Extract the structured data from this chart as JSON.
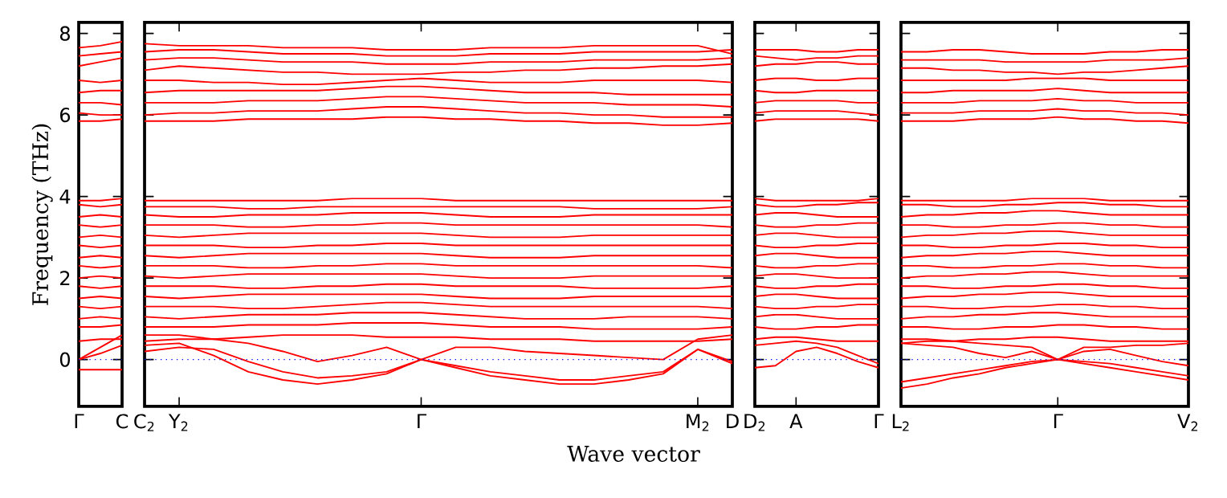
{
  "chart_data": [
    {
      "type": "line",
      "ylabel": "Frequency (THz)",
      "color": "#ff0000",
      "ylim": [
        -1.15,
        8.27
      ],
      "yticks": [
        0,
        2,
        4,
        6,
        8
      ],
      "categories": [
        "Γ",
        null,
        "C"
      ],
      "ref_lines": [
        {
          "axis": "y",
          "value": 0,
          "color": "#0000ff",
          "line_style": "dotted"
        }
      ],
      "series": [
        {
          "values": [
            5.85,
            5.85,
            5.9
          ]
        },
        {
          "values": [
            6.05,
            6.0,
            6.0
          ]
        },
        {
          "values": [
            6.3,
            6.3,
            6.25
          ]
        },
        {
          "values": [
            6.55,
            6.6,
            6.6
          ]
        },
        {
          "values": [
            6.85,
            6.8,
            6.85
          ]
        },
        {
          "values": [
            7.2,
            7.3,
            7.4
          ]
        },
        {
          "values": [
            7.45,
            7.5,
            7.55
          ]
        },
        {
          "values": [
            7.65,
            7.7,
            7.8
          ]
        },
        {
          "values": [
            0.45,
            0.5,
            0.5
          ]
        },
        {
          "values": [
            0.8,
            0.8,
            0.85
          ]
        },
        {
          "values": [
            1.0,
            1.05,
            1.0
          ]
        },
        {
          "values": [
            1.3,
            1.25,
            1.3
          ]
        },
        {
          "values": [
            1.5,
            1.55,
            1.5
          ]
        },
        {
          "values": [
            1.8,
            1.75,
            1.8
          ]
        },
        {
          "values": [
            2.0,
            2.05,
            2.0
          ]
        },
        {
          "values": [
            2.3,
            2.25,
            2.3
          ]
        },
        {
          "values": [
            2.5,
            2.55,
            2.5
          ]
        },
        {
          "values": [
            2.8,
            2.75,
            2.8
          ]
        },
        {
          "values": [
            3.0,
            3.05,
            3.0
          ]
        },
        {
          "values": [
            3.3,
            3.25,
            3.3
          ]
        },
        {
          "values": [
            3.5,
            3.55,
            3.5
          ]
        },
        {
          "values": [
            3.8,
            3.75,
            3.8
          ]
        },
        {
          "values": [
            3.9,
            3.9,
            3.95
          ]
        },
        {
          "values": [
            0,
            0.3,
            0.6
          ]
        },
        {
          "values": [
            0,
            0.15,
            0.35
          ]
        },
        {
          "values": [
            -0.25,
            -0.25,
            -0.25
          ]
        }
      ]
    },
    {
      "type": "line",
      "xlabel": "Wave vector",
      "color": "#ff0000",
      "tick_labels": "x",
      "ylim": [
        -1.15,
        8.27
      ],
      "yticks": [
        0,
        2,
        4,
        6,
        8
      ],
      "categories": [
        "C$_{2}$",
        "Y$_{2}$",
        null,
        null,
        null,
        null,
        null,
        null,
        "Γ",
        null,
        null,
        null,
        null,
        null,
        null,
        null,
        "M$_{2}$",
        "D"
      ],
      "ref_lines": [
        {
          "axis": "y",
          "value": 0,
          "color": "#0000ff",
          "line_style": "dotted"
        }
      ],
      "series": [
        {
          "values": [
            0.35,
            0.4,
            0.1,
            -0.3,
            -0.5,
            -0.6,
            -0.5,
            -0.35,
            0,
            -0.2,
            -0.4,
            -0.5,
            -0.6,
            -0.6,
            -0.5,
            -0.35,
            0.25,
            -0.1
          ]
        },
        {
          "values": [
            0.2,
            0.3,
            0.25,
            -0.05,
            -0.3,
            -0.45,
            -0.4,
            -0.3,
            0,
            -0.15,
            -0.3,
            -0.4,
            -0.5,
            -0.5,
            -0.4,
            -0.3,
            0.25,
            -0.05
          ]
        },
        {
          "values": [
            0.6,
            0.6,
            0.5,
            0.4,
            0.2,
            -0.05,
            0.1,
            0.3,
            0,
            0.3,
            0.3,
            0.2,
            0.15,
            0.1,
            0.05,
            0,
            0.5,
            0.6
          ]
        },
        {
          "values": [
            5.85,
            5.85,
            5.85,
            5.9,
            5.9,
            5.9,
            5.9,
            5.95,
            5.95,
            5.9,
            5.9,
            5.85,
            5.85,
            5.8,
            5.8,
            5.75,
            5.75,
            5.8
          ]
        },
        {
          "values": [
            6.0,
            6.05,
            6.05,
            6.1,
            6.1,
            6.1,
            6.15,
            6.2,
            6.2,
            6.15,
            6.1,
            6.05,
            6.05,
            6.0,
            6.0,
            5.95,
            5.95,
            5.95
          ]
        },
        {
          "values": [
            6.3,
            6.3,
            6.3,
            6.35,
            6.35,
            6.35,
            6.4,
            6.45,
            6.45,
            6.4,
            6.35,
            6.3,
            6.3,
            6.3,
            6.25,
            6.25,
            6.25,
            6.2
          ]
        },
        {
          "values": [
            6.55,
            6.6,
            6.6,
            6.6,
            6.6,
            6.6,
            6.65,
            6.7,
            6.7,
            6.65,
            6.6,
            6.55,
            6.55,
            6.55,
            6.5,
            6.5,
            6.5,
            6.5
          ]
        },
        {
          "values": [
            6.85,
            6.85,
            6.8,
            6.8,
            6.75,
            6.75,
            6.8,
            6.85,
            6.9,
            6.85,
            6.8,
            6.8,
            6.8,
            6.85,
            6.85,
            6.85,
            6.85,
            6.8
          ]
        },
        {
          "values": [
            7.1,
            7.2,
            7.15,
            7.1,
            7.05,
            7.05,
            7.0,
            7.0,
            7.0,
            7.05,
            7.05,
            7.1,
            7.1,
            7.15,
            7.15,
            7.2,
            7.2,
            7.25
          ]
        },
        {
          "values": [
            7.35,
            7.4,
            7.4,
            7.35,
            7.3,
            7.3,
            7.3,
            7.25,
            7.25,
            7.25,
            7.3,
            7.3,
            7.3,
            7.35,
            7.35,
            7.35,
            7.35,
            7.4
          ]
        },
        {
          "values": [
            7.55,
            7.6,
            7.6,
            7.55,
            7.5,
            7.5,
            7.5,
            7.45,
            7.45,
            7.45,
            7.5,
            7.5,
            7.5,
            7.55,
            7.55,
            7.55,
            7.55,
            7.6
          ]
        },
        {
          "values": [
            7.75,
            7.7,
            7.7,
            7.7,
            7.65,
            7.65,
            7.65,
            7.6,
            7.6,
            7.6,
            7.65,
            7.65,
            7.65,
            7.7,
            7.7,
            7.7,
            7.7,
            7.5
          ]
        },
        {
          "values": [
            0.45,
            0.5,
            0.5,
            0.55,
            0.6,
            0.6,
            0.6,
            0.55,
            0.55,
            0.55,
            0.5,
            0.5,
            0.5,
            0.45,
            0.45,
            0.45,
            0.45,
            0.5
          ]
        },
        {
          "values": [
            0.8,
            0.8,
            0.8,
            0.85,
            0.85,
            0.85,
            0.9,
            0.9,
            0.9,
            0.85,
            0.8,
            0.8,
            0.8,
            0.75,
            0.75,
            0.75,
            0.75,
            0.8
          ]
        },
        {
          "values": [
            1.05,
            1.0,
            1.05,
            1.1,
            1.1,
            1.1,
            1.15,
            1.15,
            1.15,
            1.1,
            1.05,
            1.0,
            1.0,
            1.0,
            1.05,
            1.05,
            1.05,
            1.0
          ]
        },
        {
          "values": [
            1.3,
            1.3,
            1.3,
            1.25,
            1.25,
            1.3,
            1.35,
            1.4,
            1.4,
            1.35,
            1.3,
            1.3,
            1.3,
            1.3,
            1.3,
            1.3,
            1.3,
            1.25
          ]
        },
        {
          "values": [
            1.55,
            1.5,
            1.55,
            1.6,
            1.6,
            1.6,
            1.6,
            1.6,
            1.6,
            1.55,
            1.5,
            1.5,
            1.5,
            1.55,
            1.55,
            1.55,
            1.55,
            1.55
          ]
        },
        {
          "values": [
            1.8,
            1.8,
            1.8,
            1.75,
            1.75,
            1.8,
            1.8,
            1.85,
            1.85,
            1.8,
            1.8,
            1.8,
            1.8,
            1.75,
            1.75,
            1.75,
            1.75,
            1.8
          ]
        },
        {
          "values": [
            2.05,
            2.0,
            2.05,
            2.1,
            2.1,
            2.1,
            2.1,
            2.1,
            2.1,
            2.05,
            2.0,
            2.0,
            2.0,
            2.05,
            2.05,
            2.05,
            2.05,
            2.05
          ]
        },
        {
          "values": [
            2.3,
            2.3,
            2.3,
            2.25,
            2.25,
            2.3,
            2.3,
            2.35,
            2.35,
            2.3,
            2.3,
            2.3,
            2.3,
            2.3,
            2.3,
            2.3,
            2.3,
            2.25
          ]
        },
        {
          "values": [
            2.55,
            2.5,
            2.55,
            2.6,
            2.6,
            2.6,
            2.6,
            2.6,
            2.6,
            2.55,
            2.5,
            2.5,
            2.5,
            2.55,
            2.55,
            2.55,
            2.55,
            2.55
          ]
        },
        {
          "values": [
            2.8,
            2.8,
            2.8,
            2.75,
            2.75,
            2.8,
            2.8,
            2.85,
            2.85,
            2.8,
            2.8,
            2.8,
            2.8,
            2.8,
            2.8,
            2.8,
            2.8,
            2.8
          ]
        },
        {
          "values": [
            3.05,
            3.0,
            3.05,
            3.1,
            3.1,
            3.1,
            3.1,
            3.1,
            3.1,
            3.05,
            3.0,
            3.0,
            3.0,
            3.05,
            3.05,
            3.05,
            3.05,
            3.05
          ]
        },
        {
          "values": [
            3.3,
            3.3,
            3.3,
            3.25,
            3.25,
            3.3,
            3.3,
            3.35,
            3.35,
            3.3,
            3.3,
            3.3,
            3.3,
            3.3,
            3.3,
            3.3,
            3.3,
            3.25
          ]
        },
        {
          "values": [
            3.55,
            3.5,
            3.5,
            3.55,
            3.55,
            3.55,
            3.6,
            3.6,
            3.6,
            3.55,
            3.5,
            3.5,
            3.5,
            3.55,
            3.55,
            3.55,
            3.55,
            3.55
          ]
        },
        {
          "values": [
            3.75,
            3.75,
            3.75,
            3.7,
            3.7,
            3.75,
            3.75,
            3.75,
            3.75,
            3.75,
            3.75,
            3.75,
            3.75,
            3.7,
            3.7,
            3.7,
            3.7,
            3.75
          ]
        },
        {
          "values": [
            3.9,
            3.9,
            3.9,
            3.9,
            3.9,
            3.9,
            3.95,
            3.95,
            3.95,
            3.9,
            3.9,
            3.9,
            3.9,
            3.9,
            3.9,
            3.9,
            3.9,
            3.9
          ]
        }
      ]
    },
    {
      "type": "line",
      "color": "#ff0000",
      "tick_labels": "x",
      "ylim": [
        -1.15,
        8.27
      ],
      "yticks": [
        0,
        2,
        4,
        6,
        8
      ],
      "categories": [
        "D$_{2}$",
        null,
        "A",
        null,
        null,
        null,
        "Γ"
      ],
      "ref_lines": [
        {
          "axis": "y",
          "value": 0,
          "color": "#0000ff",
          "line_style": "dotted"
        }
      ],
      "series": [
        {
          "values": [
            5.85,
            5.9,
            5.9,
            5.9,
            5.9,
            5.9,
            5.85
          ]
        },
        {
          "values": [
            6.05,
            6.1,
            6.1,
            6.1,
            6.1,
            6.05,
            6.0
          ]
        },
        {
          "values": [
            6.3,
            6.35,
            6.35,
            6.35,
            6.35,
            6.3,
            6.3
          ]
        },
        {
          "values": [
            6.6,
            6.55,
            6.55,
            6.6,
            6.6,
            6.6,
            6.6
          ]
        },
        {
          "values": [
            6.85,
            6.9,
            6.9,
            6.85,
            6.85,
            6.9,
            6.9
          ]
        },
        {
          "values": [
            7.2,
            7.25,
            7.25,
            7.3,
            7.3,
            7.25,
            7.25
          ]
        },
        {
          "values": [
            7.45,
            7.4,
            7.35,
            7.4,
            7.4,
            7.45,
            7.45
          ]
        },
        {
          "values": [
            7.6,
            7.6,
            7.6,
            7.55,
            7.55,
            7.6,
            7.6
          ]
        },
        {
          "values": [
            0.5,
            0.55,
            0.55,
            0.5,
            0.45,
            0.45,
            0.45
          ]
        },
        {
          "values": [
            0.8,
            0.75,
            0.75,
            0.8,
            0.8,
            0.85,
            0.85
          ]
        },
        {
          "values": [
            1.05,
            1.1,
            1.1,
            1.05,
            1.0,
            1.0,
            1.0
          ]
        },
        {
          "values": [
            1.3,
            1.25,
            1.25,
            1.3,
            1.3,
            1.35,
            1.35
          ]
        },
        {
          "values": [
            1.55,
            1.6,
            1.6,
            1.55,
            1.5,
            1.5,
            1.5
          ]
        },
        {
          "values": [
            1.8,
            1.75,
            1.75,
            1.8,
            1.8,
            1.85,
            1.85
          ]
        },
        {
          "values": [
            2.05,
            2.1,
            2.1,
            2.05,
            2.0,
            2.0,
            2.0
          ]
        },
        {
          "values": [
            2.3,
            2.25,
            2.25,
            2.3,
            2.3,
            2.35,
            2.35
          ]
        },
        {
          "values": [
            2.55,
            2.6,
            2.6,
            2.55,
            2.5,
            2.5,
            2.5
          ]
        },
        {
          "values": [
            2.8,
            2.75,
            2.75,
            2.8,
            2.8,
            2.85,
            2.85
          ]
        },
        {
          "values": [
            3.05,
            3.1,
            3.1,
            3.05,
            3.0,
            3.0,
            3.0
          ]
        },
        {
          "values": [
            3.3,
            3.25,
            3.25,
            3.3,
            3.3,
            3.35,
            3.35
          ]
        },
        {
          "values": [
            3.55,
            3.6,
            3.6,
            3.55,
            3.5,
            3.5,
            3.5
          ]
        },
        {
          "values": [
            3.8,
            3.75,
            3.75,
            3.8,
            3.8,
            3.85,
            3.85
          ]
        },
        {
          "values": [
            3.95,
            3.9,
            3.9,
            3.9,
            3.9,
            3.9,
            3.95
          ]
        },
        {
          "values": [
            -0.2,
            -0.15,
            0.2,
            0.3,
            0.15,
            -0.05,
            -0.2
          ]
        },
        {
          "values": [
            0.35,
            0.4,
            0.45,
            0.4,
            0.3,
            0.1,
            -0.1
          ]
        }
      ]
    },
    {
      "type": "line",
      "color": "#ff0000",
      "tick_labels": "x",
      "ylim": [
        -1.15,
        8.27
      ],
      "yticks": [
        0,
        2,
        4,
        6,
        8
      ],
      "categories": [
        "L$_{2}$",
        null,
        null,
        null,
        null,
        null,
        "Γ",
        null,
        null,
        null,
        null,
        "V$_{2}$"
      ],
      "ref_lines": [
        {
          "axis": "y",
          "value": 0,
          "color": "#0000ff",
          "line_style": "dotted"
        }
      ],
      "series": [
        {
          "values": [
            5.85,
            5.85,
            5.85,
            5.9,
            5.9,
            5.9,
            5.95,
            5.9,
            5.9,
            5.85,
            5.85,
            5.8
          ]
        },
        {
          "values": [
            6.05,
            6.05,
            6.05,
            6.1,
            6.1,
            6.1,
            6.15,
            6.1,
            6.1,
            6.05,
            6.05,
            6.0
          ]
        },
        {
          "values": [
            6.3,
            6.3,
            6.3,
            6.35,
            6.35,
            6.35,
            6.4,
            6.35,
            6.35,
            6.3,
            6.3,
            6.3
          ]
        },
        {
          "values": [
            6.55,
            6.55,
            6.6,
            6.6,
            6.6,
            6.6,
            6.65,
            6.6,
            6.55,
            6.55,
            6.55,
            6.55
          ]
        },
        {
          "values": [
            6.85,
            6.85,
            6.85,
            6.85,
            6.85,
            6.9,
            6.9,
            6.9,
            6.85,
            6.85,
            6.85,
            6.85
          ]
        },
        {
          "values": [
            7.15,
            7.15,
            7.1,
            7.1,
            7.05,
            7.05,
            7.0,
            7.05,
            7.05,
            7.1,
            7.15,
            7.2
          ]
        },
        {
          "values": [
            7.35,
            7.35,
            7.35,
            7.35,
            7.3,
            7.3,
            7.3,
            7.3,
            7.35,
            7.35,
            7.35,
            7.4
          ]
        },
        {
          "values": [
            7.55,
            7.55,
            7.6,
            7.6,
            7.55,
            7.5,
            7.5,
            7.5,
            7.55,
            7.55,
            7.6,
            7.6
          ]
        },
        {
          "values": [
            0.4,
            0.45,
            0.45,
            0.5,
            0.5,
            0.55,
            0.55,
            0.5,
            0.45,
            0.45,
            0.45,
            0.45
          ]
        },
        {
          "values": [
            0.8,
            0.8,
            0.75,
            0.75,
            0.8,
            0.8,
            0.85,
            0.85,
            0.8,
            0.8,
            0.75,
            0.75
          ]
        },
        {
          "values": [
            1.0,
            1.05,
            1.05,
            1.1,
            1.1,
            1.15,
            1.15,
            1.1,
            1.05,
            1.05,
            1.05,
            1.05
          ]
        },
        {
          "values": [
            1.3,
            1.3,
            1.25,
            1.25,
            1.3,
            1.3,
            1.35,
            1.35,
            1.3,
            1.3,
            1.25,
            1.25
          ]
        },
        {
          "values": [
            1.5,
            1.55,
            1.55,
            1.6,
            1.6,
            1.65,
            1.65,
            1.6,
            1.55,
            1.55,
            1.55,
            1.55
          ]
        },
        {
          "values": [
            1.8,
            1.8,
            1.75,
            1.75,
            1.8,
            1.8,
            1.85,
            1.85,
            1.8,
            1.8,
            1.75,
            1.75
          ]
        },
        {
          "values": [
            2.0,
            2.05,
            2.05,
            2.1,
            2.1,
            2.15,
            2.15,
            2.1,
            2.05,
            2.05,
            2.05,
            2.05
          ]
        },
        {
          "values": [
            2.3,
            2.3,
            2.25,
            2.25,
            2.3,
            2.3,
            2.35,
            2.35,
            2.3,
            2.3,
            2.25,
            2.25
          ]
        },
        {
          "values": [
            2.5,
            2.55,
            2.55,
            2.6,
            2.6,
            2.65,
            2.65,
            2.6,
            2.55,
            2.55,
            2.55,
            2.55
          ]
        },
        {
          "values": [
            2.8,
            2.8,
            2.75,
            2.75,
            2.8,
            2.8,
            2.85,
            2.85,
            2.8,
            2.8,
            2.75,
            2.75
          ]
        },
        {
          "values": [
            3.0,
            3.05,
            3.05,
            3.1,
            3.1,
            3.15,
            3.15,
            3.1,
            3.05,
            3.05,
            3.05,
            3.05
          ]
        },
        {
          "values": [
            3.3,
            3.3,
            3.25,
            3.25,
            3.3,
            3.3,
            3.35,
            3.35,
            3.3,
            3.3,
            3.25,
            3.25
          ]
        },
        {
          "values": [
            3.5,
            3.55,
            3.55,
            3.6,
            3.6,
            3.65,
            3.65,
            3.6,
            3.55,
            3.55,
            3.55,
            3.55
          ]
        },
        {
          "values": [
            3.8,
            3.8,
            3.75,
            3.75,
            3.8,
            3.8,
            3.85,
            3.85,
            3.8,
            3.8,
            3.75,
            3.75
          ]
        },
        {
          "values": [
            3.9,
            3.9,
            3.9,
            3.9,
            3.9,
            3.95,
            3.95,
            3.95,
            3.9,
            3.9,
            3.9,
            3.9
          ]
        },
        {
          "values": [
            -0.7,
            -0.6,
            -0.45,
            -0.35,
            -0.2,
            -0.1,
            0,
            -0.1,
            -0.2,
            -0.3,
            -0.4,
            -0.5
          ]
        },
        {
          "values": [
            -0.55,
            -0.45,
            -0.35,
            -0.25,
            -0.15,
            -0.05,
            0,
            -0.05,
            -0.1,
            -0.2,
            -0.3,
            -0.4
          ]
        },
        {
          "values": [
            0.4,
            0.35,
            0.3,
            0.15,
            0.05,
            0.2,
            0,
            0.2,
            0.25,
            0.1,
            -0.05,
            -0.15
          ]
        },
        {
          "values": [
            0.5,
            0.5,
            0.45,
            0.4,
            0.35,
            0.3,
            0,
            0.3,
            0.3,
            0.35,
            0.35,
            0.4
          ]
        }
      ]
    }
  ]
}
